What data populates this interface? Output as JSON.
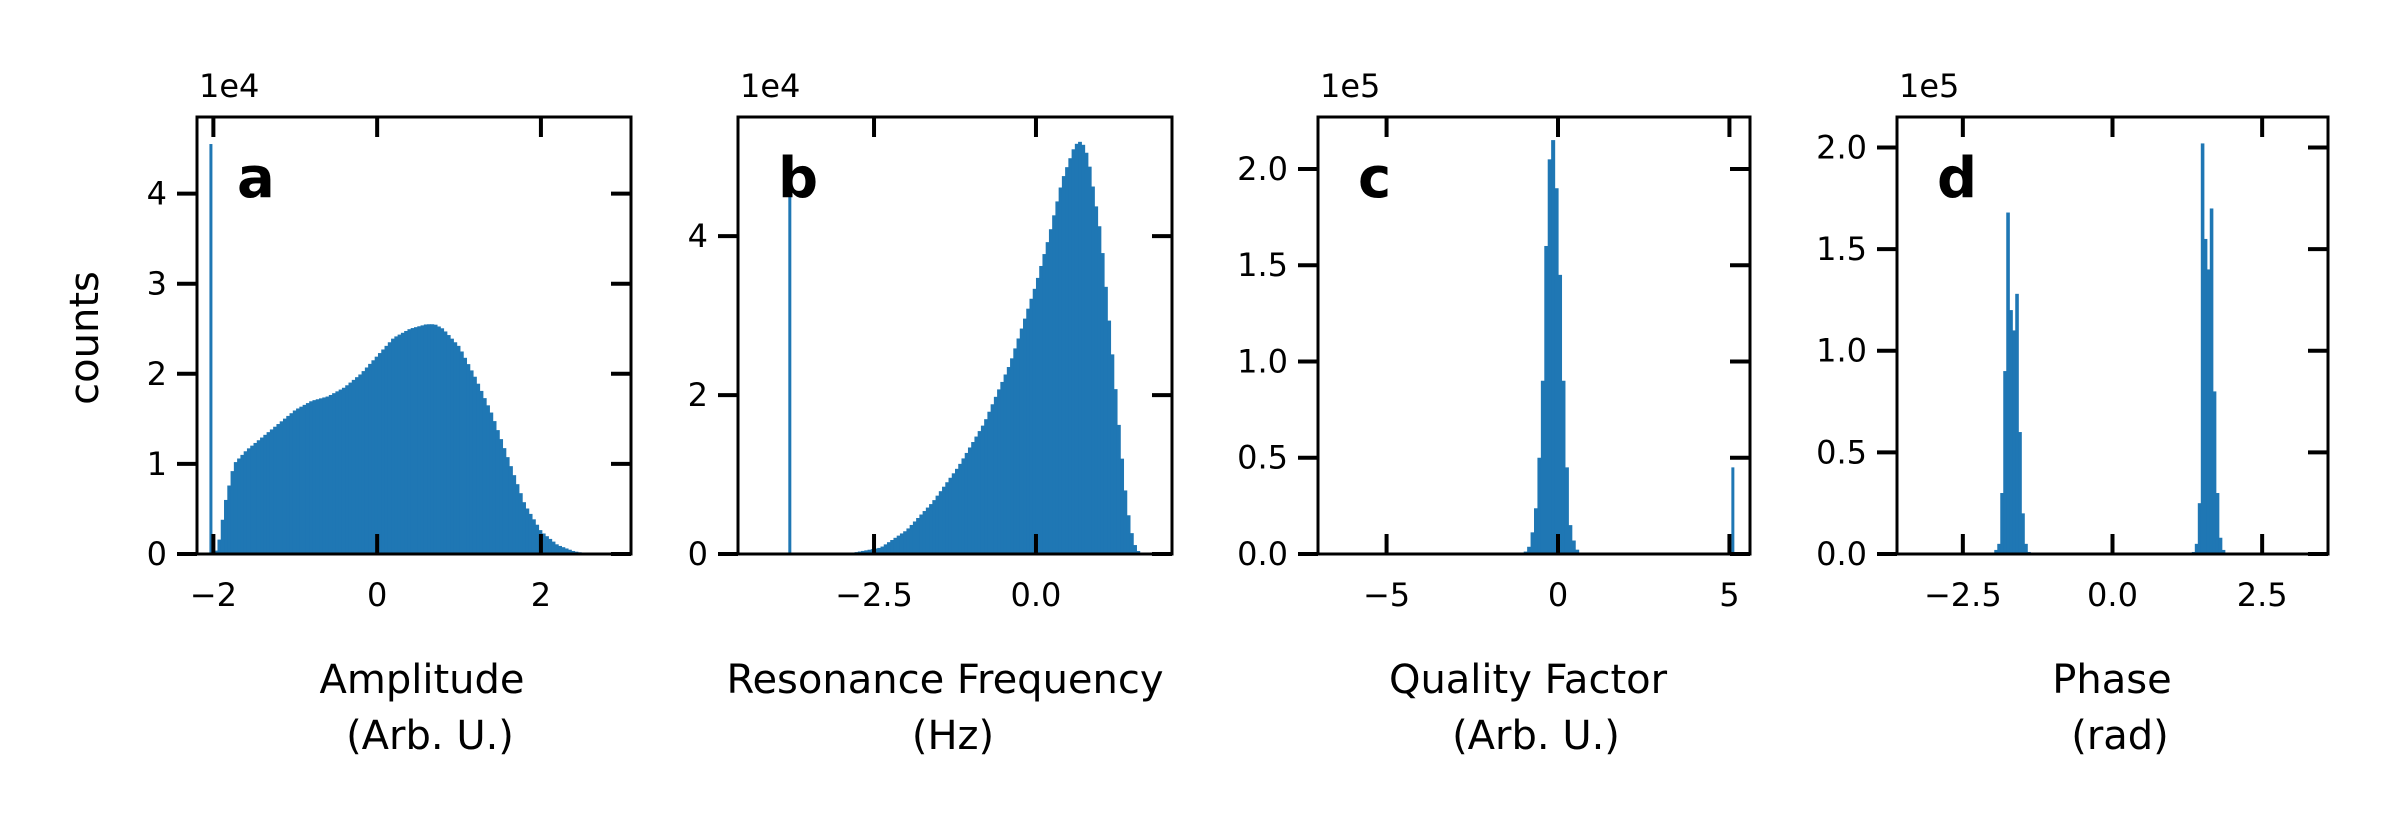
{
  "figure": {
    "ylabel": "counts",
    "bar_color": "#1f77b4"
  },
  "chart_data": [
    {
      "type": "bar",
      "panel": "a",
      "xlabel_lines": [
        "Amplitude",
        "(Arb. U.)"
      ],
      "ylabel": "counts",
      "y_multiplier": "1e4",
      "xlim": [
        -2.2,
        3.1
      ],
      "ylim": [
        0,
        4.85
      ],
      "xticks": [
        {
          "v": -2,
          "label": "−2"
        },
        {
          "v": 0,
          "label": "0"
        },
        {
          "v": 2,
          "label": "2"
        }
      ],
      "yticks": [
        {
          "v": 0,
          "label": "0"
        },
        {
          "v": 1,
          "label": "1"
        },
        {
          "v": 2,
          "label": "2"
        },
        {
          "v": 3,
          "label": "3"
        },
        {
          "v": 4,
          "label": "4"
        }
      ],
      "spikes": [
        {
          "x": -2.03,
          "value": 4.55
        }
      ],
      "profile": [
        [
          -2.03,
          0
        ],
        [
          -1.95,
          0.05
        ],
        [
          -1.85,
          0.6
        ],
        [
          -1.75,
          1.0
        ],
        [
          -1.6,
          1.15
        ],
        [
          -1.4,
          1.3
        ],
        [
          -1.2,
          1.45
        ],
        [
          -1.0,
          1.6
        ],
        [
          -0.8,
          1.7
        ],
        [
          -0.6,
          1.75
        ],
        [
          -0.4,
          1.85
        ],
        [
          -0.2,
          2.0
        ],
        [
          0,
          2.2
        ],
        [
          0.2,
          2.4
        ],
        [
          0.4,
          2.5
        ],
        [
          0.6,
          2.55
        ],
        [
          0.7,
          2.55
        ],
        [
          0.8,
          2.5
        ],
        [
          1.0,
          2.3
        ],
        [
          1.2,
          1.95
        ],
        [
          1.4,
          1.55
        ],
        [
          1.6,
          1.05
        ],
        [
          1.8,
          0.55
        ],
        [
          2.0,
          0.25
        ],
        [
          2.2,
          0.1
        ],
        [
          2.4,
          0.03
        ],
        [
          2.6,
          0
        ]
      ],
      "bin_width": 0.04
    },
    {
      "type": "bar",
      "panel": "b",
      "xlabel_lines": [
        "Resonance Frequency",
        "(Hz)"
      ],
      "y_multiplier": "1e4",
      "xlim": [
        -4.6,
        2.1
      ],
      "ylim": [
        0,
        5.5
      ],
      "xticks": [
        {
          "v": -2.5,
          "label": "−2.5"
        },
        {
          "v": 0,
          "label": "0.0"
        }
      ],
      "yticks": [
        {
          "v": 0,
          "label": "0"
        },
        {
          "v": 2,
          "label": "2"
        },
        {
          "v": 4,
          "label": "4"
        }
      ],
      "spikes": [
        {
          "x": -3.8,
          "value": 4.6
        }
      ],
      "profile": [
        [
          -3.2,
          0
        ],
        [
          -2.8,
          0.02
        ],
        [
          -2.4,
          0.08
        ],
        [
          -2.0,
          0.3
        ],
        [
          -1.6,
          0.65
        ],
        [
          -1.2,
          1.1
        ],
        [
          -0.8,
          1.65
        ],
        [
          -0.4,
          2.4
        ],
        [
          0,
          3.4
        ],
        [
          0.2,
          4.0
        ],
        [
          0.4,
          4.7
        ],
        [
          0.6,
          5.15
        ],
        [
          0.7,
          5.2
        ],
        [
          0.8,
          5.0
        ],
        [
          1.0,
          4.0
        ],
        [
          1.2,
          2.3
        ],
        [
          1.3,
          1.4
        ],
        [
          1.4,
          0.6
        ],
        [
          1.5,
          0.15
        ],
        [
          1.6,
          0
        ]
      ],
      "bin_width": 0.05
    },
    {
      "type": "bar",
      "panel": "c",
      "xlabel_lines": [
        "Quality Factor",
        "(Arb. U.)"
      ],
      "y_multiplier": "1e5",
      "xlim": [
        -7,
        5.6
      ],
      "ylim": [
        0,
        2.27
      ],
      "xticks": [
        {
          "v": -5,
          "label": "−5"
        },
        {
          "v": 0,
          "label": "0"
        },
        {
          "v": 5,
          "label": "5"
        }
      ],
      "yticks": [
        {
          "v": 0,
          "label": "0.0"
        },
        {
          "v": 0.5,
          "label": "0.5"
        },
        {
          "v": 1.0,
          "label": "1.0"
        },
        {
          "v": 1.5,
          "label": "1.5"
        },
        {
          "v": 2.0,
          "label": "2.0"
        }
      ],
      "spikes": [
        {
          "x": 5.1,
          "value": 0.45
        }
      ],
      "profile": [
        [
          -1.0,
          0
        ],
        [
          -0.8,
          0.05
        ],
        [
          -0.6,
          0.3
        ],
        [
          -0.45,
          0.9
        ],
        [
          -0.35,
          1.6
        ],
        [
          -0.25,
          2.05
        ],
        [
          -0.15,
          2.15
        ],
        [
          -0.05,
          1.9
        ],
        [
          0.05,
          1.45
        ],
        [
          0.15,
          0.9
        ],
        [
          0.25,
          0.45
        ],
        [
          0.35,
          0.15
        ],
        [
          0.5,
          0.03
        ],
        [
          0.7,
          0
        ]
      ],
      "bin_width": 0.1
    },
    {
      "type": "bar",
      "panel": "d",
      "xlabel_lines": [
        "Phase",
        "(rad)"
      ],
      "y_multiplier": "1e5",
      "xlim": [
        -3.6,
        3.6
      ],
      "ylim": [
        0,
        2.15
      ],
      "xticks": [
        {
          "v": -2.5,
          "label": "−2.5"
        },
        {
          "v": 0,
          "label": "0.0"
        },
        {
          "v": 2.5,
          "label": "2.5"
        }
      ],
      "yticks": [
        {
          "v": 0,
          "label": "0.0"
        },
        {
          "v": 0.5,
          "label": "0.5"
        },
        {
          "v": 1.0,
          "label": "1.0"
        },
        {
          "v": 1.5,
          "label": "1.5"
        },
        {
          "v": 2.0,
          "label": "2.0"
        }
      ],
      "spikes": [],
      "bins": [
        [
          -1.95,
          0.02
        ],
        [
          -1.9,
          0.05
        ],
        [
          -1.85,
          0.3
        ],
        [
          -1.8,
          0.9
        ],
        [
          -1.75,
          1.68
        ],
        [
          -1.7,
          1.2
        ],
        [
          -1.65,
          1.1
        ],
        [
          -1.6,
          1.28
        ],
        [
          -1.55,
          0.6
        ],
        [
          -1.5,
          0.2
        ],
        [
          -1.45,
          0.05
        ],
        [
          -1.4,
          0.01
        ],
        [
          1.35,
          0.01
        ],
        [
          1.4,
          0.05
        ],
        [
          1.45,
          0.25
        ],
        [
          1.5,
          2.02
        ],
        [
          1.55,
          1.55
        ],
        [
          1.6,
          1.4
        ],
        [
          1.65,
          1.7
        ],
        [
          1.7,
          0.8
        ],
        [
          1.75,
          0.3
        ],
        [
          1.8,
          0.08
        ],
        [
          1.85,
          0.02
        ]
      ],
      "bin_width": 0.05
    }
  ]
}
